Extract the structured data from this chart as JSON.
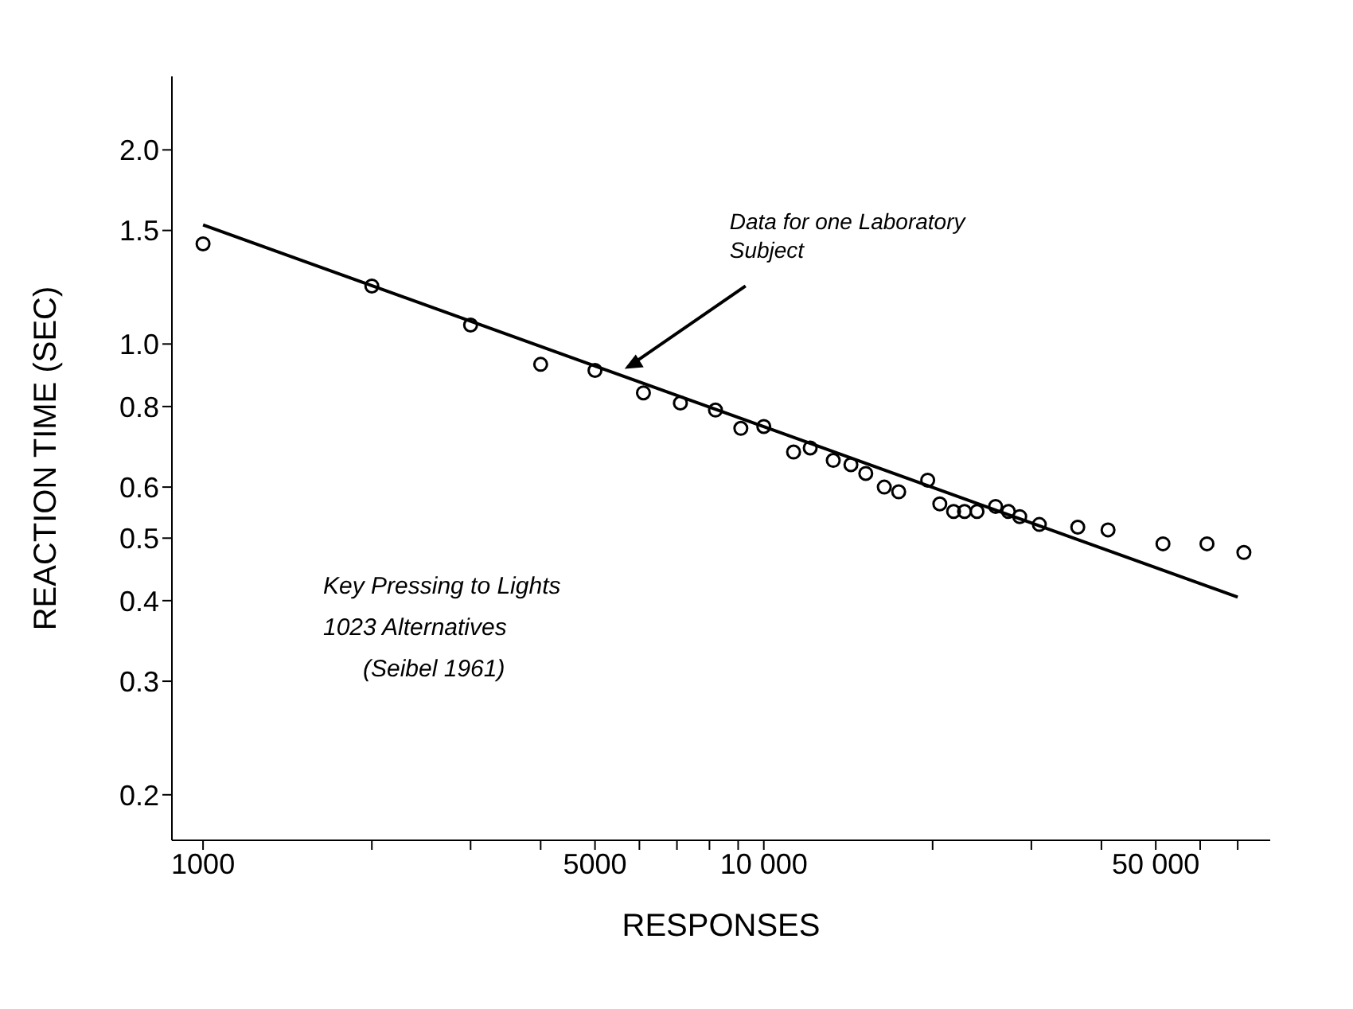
{
  "chart_data": {
    "type": "scatter",
    "xlabel": "RESPONSES",
    "ylabel": "REACTION TIME (SEC)",
    "log": "xy",
    "marker": "circle",
    "xlim": [
      880,
      80000
    ],
    "ylim": [
      0.17,
      2.6
    ],
    "xticks": [
      1000,
      {
        "value": 2000,
        "label": null
      },
      {
        "value": 3000,
        "label": null
      },
      {
        "value": 4000,
        "label": null
      },
      5000,
      {
        "value": 6000,
        "label": null
      },
      {
        "value": 7000,
        "label": null
      },
      {
        "value": 8000,
        "label": null
      },
      {
        "value": 9000,
        "label": null
      },
      {
        "value": 10000,
        "label": "10 000"
      },
      {
        "value": 20000,
        "label": null
      },
      {
        "value": 30000,
        "label": null
      },
      {
        "value": 40000,
        "label": null
      },
      {
        "value": 50000,
        "label": "50 000"
      },
      {
        "value": 60000,
        "label": null
      },
      {
        "value": 70000,
        "label": null
      }
    ],
    "yticks": [
      {
        "value": 2.0,
        "label": "2.0"
      },
      {
        "value": 1.5,
        "label": "1.5"
      },
      {
        "value": 1.0,
        "label": "1.0"
      },
      {
        "value": 0.8,
        "label": "0.8"
      },
      {
        "value": 0.6,
        "label": "0.6"
      },
      {
        "value": 0.5,
        "label": "0.5"
      },
      {
        "value": 0.4,
        "label": "0.4"
      },
      {
        "value": 0.3,
        "label": "0.3"
      },
      {
        "value": 0.2,
        "label": "0.2"
      }
    ],
    "series": [
      {
        "color": "#000000",
        "x": [
          1000,
          2000,
          3000,
          4000,
          5000,
          6100,
          7100,
          8200,
          9100,
          10000,
          11300,
          12100,
          13300,
          14300,
          15200,
          16400,
          17400,
          19600,
          20600,
          21800,
          22800,
          24000,
          25900,
          27300,
          28600,
          31000,
          36300,
          41100,
          51500,
          61700,
          71800
        ],
        "values": [
          1.43,
          1.23,
          1.07,
          0.93,
          0.91,
          0.84,
          0.81,
          0.79,
          0.74,
          0.745,
          0.68,
          0.69,
          0.66,
          0.65,
          0.63,
          0.6,
          0.59,
          0.615,
          0.565,
          0.55,
          0.55,
          0.55,
          0.56,
          0.55,
          0.54,
          0.525,
          0.52,
          0.515,
          0.49,
          0.49,
          0.475
        ]
      },
      {
        "type": "line",
        "color": "#000000",
        "marker": "none",
        "line_style": "solid",
        "x": [
          1000,
          70000
        ],
        "values": [
          1.53,
          0.405
        ]
      }
    ],
    "annotations": [
      {
        "text": "Data for one Laboratory Subject",
        "x": 5500,
        "y": 0.9
      },
      "Key Pressing to Lights",
      "1023 Alternatives",
      "(Seibel 1961)"
    ]
  }
}
